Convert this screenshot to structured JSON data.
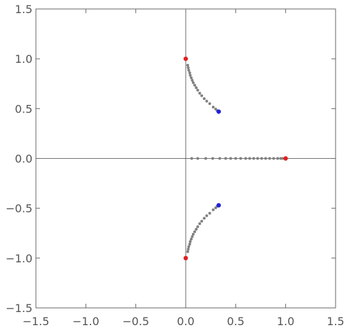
{
  "chart_data": {
    "type": "scatter",
    "title": "",
    "xlabel": "",
    "ylabel": "",
    "xlim": [
      -1.5,
      1.5
    ],
    "ylim": [
      -1.5,
      1.5
    ],
    "x_ticks": [
      -1.5,
      -1.0,
      -0.5,
      0.0,
      0.5,
      1.0,
      1.5
    ],
    "y_ticks": [
      -1.5,
      -1.0,
      -0.5,
      0.0,
      0.5,
      1.0,
      1.5
    ],
    "x_tick_labels": [
      "−1.5",
      "−1.0",
      "−0.5",
      "0.0",
      "0.5",
      "1.0",
      "1.5"
    ],
    "y_tick_labels": [
      "−1.5",
      "−1.0",
      "−0.5",
      "0.0",
      "0.5",
      "1.0",
      "1.5"
    ],
    "axes_through_origin": true,
    "grid": false,
    "legend": "none",
    "colors": {
      "path": "#808080",
      "start": "#e02020",
      "end": "#2020e0",
      "frame": "#666666",
      "axis": "#444444"
    },
    "series": [
      {
        "points": [
          {
            "x": 0.0,
            "y": 1.0
          },
          {
            "x": 0.02,
            "y": 0.935
          },
          {
            "x": 0.025,
            "y": 0.91
          },
          {
            "x": 0.03,
            "y": 0.885
          },
          {
            "x": 0.04,
            "y": 0.86
          },
          {
            "x": 0.045,
            "y": 0.835
          },
          {
            "x": 0.055,
            "y": 0.81
          },
          {
            "x": 0.065,
            "y": 0.785
          },
          {
            "x": 0.075,
            "y": 0.76
          },
          {
            "x": 0.09,
            "y": 0.735
          },
          {
            "x": 0.105,
            "y": 0.71
          },
          {
            "x": 0.12,
            "y": 0.685
          },
          {
            "x": 0.14,
            "y": 0.655
          },
          {
            "x": 0.16,
            "y": 0.63
          },
          {
            "x": 0.185,
            "y": 0.6
          },
          {
            "x": 0.21,
            "y": 0.575
          },
          {
            "x": 0.24,
            "y": 0.55
          },
          {
            "x": 0.275,
            "y": 0.515
          },
          {
            "x": 0.3,
            "y": 0.495
          },
          {
            "x": 0.315,
            "y": 0.48
          },
          {
            "x": 0.33,
            "y": 0.47
          }
        ]
      },
      {
        "points": [
          {
            "x": 0.0,
            "y": -1.0
          },
          {
            "x": 0.02,
            "y": -0.935
          },
          {
            "x": 0.025,
            "y": -0.91
          },
          {
            "x": 0.03,
            "y": -0.885
          },
          {
            "x": 0.04,
            "y": -0.86
          },
          {
            "x": 0.045,
            "y": -0.835
          },
          {
            "x": 0.055,
            "y": -0.81
          },
          {
            "x": 0.065,
            "y": -0.785
          },
          {
            "x": 0.075,
            "y": -0.76
          },
          {
            "x": 0.09,
            "y": -0.735
          },
          {
            "x": 0.105,
            "y": -0.71
          },
          {
            "x": 0.12,
            "y": -0.685
          },
          {
            "x": 0.14,
            "y": -0.655
          },
          {
            "x": 0.16,
            "y": -0.63
          },
          {
            "x": 0.185,
            "y": -0.6
          },
          {
            "x": 0.21,
            "y": -0.575
          },
          {
            "x": 0.24,
            "y": -0.55
          },
          {
            "x": 0.275,
            "y": -0.515
          },
          {
            "x": 0.3,
            "y": -0.495
          },
          {
            "x": 0.315,
            "y": -0.48
          },
          {
            "x": 0.33,
            "y": -0.47
          }
        ]
      },
      {
        "points": [
          {
            "x": 1.0,
            "y": 0.0
          },
          {
            "x": 0.06,
            "y": 0.0
          },
          {
            "x": 0.12,
            "y": 0.0
          },
          {
            "x": 0.2,
            "y": 0.0
          },
          {
            "x": 0.27,
            "y": 0.0
          },
          {
            "x": 0.34,
            "y": 0.0
          },
          {
            "x": 0.4,
            "y": 0.0
          },
          {
            "x": 0.45,
            "y": 0.0
          },
          {
            "x": 0.5,
            "y": 0.0
          },
          {
            "x": 0.55,
            "y": 0.0
          },
          {
            "x": 0.6,
            "y": 0.0
          },
          {
            "x": 0.64,
            "y": 0.0
          },
          {
            "x": 0.68,
            "y": 0.0
          },
          {
            "x": 0.72,
            "y": 0.0
          },
          {
            "x": 0.76,
            "y": 0.0
          },
          {
            "x": 0.8,
            "y": 0.0
          },
          {
            "x": 0.84,
            "y": 0.0
          },
          {
            "x": 0.88,
            "y": 0.0
          },
          {
            "x": 0.92,
            "y": 0.0
          },
          {
            "x": 0.95,
            "y": 0.0
          },
          {
            "x": 0.97,
            "y": 0.0
          }
        ]
      }
    ],
    "start_points": [
      {
        "x": 0.0,
        "y": 1.0
      },
      {
        "x": 0.0,
        "y": -1.0
      },
      {
        "x": 1.0,
        "y": 0.0
      }
    ],
    "end_points": [
      {
        "x": 0.33,
        "y": 0.47
      },
      {
        "x": 0.33,
        "y": -0.47
      }
    ]
  }
}
